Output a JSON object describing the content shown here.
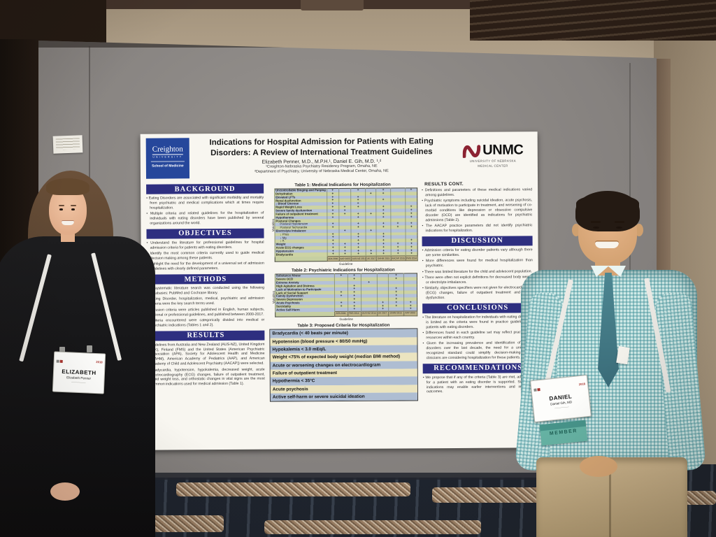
{
  "badges": {
    "left": {
      "year": "2018",
      "name": "ELIZABETH",
      "subname": "Elizabeth Penner"
    },
    "right": {
      "year": "2018",
      "name": "DANIEL",
      "subname": "Daniel Gih, MD",
      "ribbon": "MEMBER"
    }
  },
  "poster": {
    "creighton": {
      "name": "Creighton",
      "univ": "UNIVERSITY",
      "school": "School of Medicine"
    },
    "unmc": {
      "abbr": "UNMC",
      "sub1": "UNIVERSITY OF NEBRASKA",
      "sub2": "MEDICAL CENTER"
    },
    "title_line1": "Indications for Hospital Admission for Patients with Eating",
    "title_line2": "Disorders: A Review of International Treatment Guidelines",
    "authors": "Elizabeth Penner, M.D., M.P.H.¹, Daniel E. Gih, M.D. ¹,²",
    "affiliation1": "¹Creighton-Nebraska Psychiatry Residency Program, Omaha, NE",
    "affiliation2": "²Department of Psychiatry, University of Nebraska Medical Center, Omaha, NE",
    "sections": {
      "background": {
        "title": "BACKGROUND",
        "bullets": [
          "Eating Disorders are associated with significant morbidity and mortality from psychiatric and medical complications which at times require hospitalization.",
          "Multiple criteria and related guidelines for the hospitalization of individuals with eating disorders have been published by several organizations around the world."
        ]
      },
      "objectives": {
        "title": "OBJECTIVES",
        "bullets": [
          "Understand the literature for professional guidelines for hospital admission criteria for patients with eating disorders.",
          "Identify the most common criteria currently used to guide medical decision making among these patients.",
          "Highlight the need for the development of a universal set of admission guidelines with clearly defined parameters."
        ]
      },
      "methods": {
        "title": "METHODS",
        "bullets": [
          "A systematic literature search was conducted using the following databases: PubMed and Cochrane library.",
          "Eating Disorder, hospitalization, medical, psychiatric and admission criteria were the key search terms used.",
          "Inclusion criteria were articles published in English, human subjects, national or professional guidelines, and published between 2000-2017.",
          "Criteria encountered were categorically divided into medical or psychiatric indications (Tables 1 and 2)."
        ]
      },
      "results": {
        "title": "RESULTS",
        "bullets": [
          "Guidelines from Australia and New Zealand (AUS-NZ), United Kingdom (UK), Finland (FMS) and the United States (American Psychiatric Association (APA), Society for Adolescent Health and Medicine (SAHM), American Academy of Pediatrics (AAP), and American Academy of Child and Adolescent Psychiatry (AACAP)) were selected.",
          "Bradycardia, hypotension, hypokalemia, decreased weight, acute electrocardiography (ECG) changes, failure of outpatient treatment, rapid weight loss, and orthostatic changes in vital signs are the most common indications used for medical admission (Table 1)."
        ]
      },
      "results_cont": {
        "title": "RESULTS CONT.",
        "bullets": [
          "Definitions and parameters of these medical indications varied among guidelines.",
          "Psychiatric symptoms including suicidal ideation, acute psychosis, lack of motivation to participate in treatment, and worsening of co-morbid conditions like depression or obsessive compulsive disorder (OCD) are identified as indications for psychiatric admissions (Table 2).",
          "The AACAP practice parameters did not identify psychiatric indications for hospitalization."
        ]
      },
      "discussion": {
        "title": "DISCUSSION",
        "bullets": [
          "Admission criteria for eating disorder patients vary although there are some similarities.",
          "More differences were found for medical hospitalization than psychiatric.",
          "There was limited literature for the child and adolescent population.",
          "There were often not explicit definitions for decreased body weight or electrolyte imbalances.",
          "Similarly, objectives specifiers were not given for electrocardiogram (ECG) changes, failure of outpatient treatment and family dysfunction."
        ]
      },
      "conclusions": {
        "title": "CONCLUSIONS",
        "bullets": [
          "The literature on hospitalization for individuals with eating disorders is limited as the criteria were found in practice guidelines for patients with eating disorders.",
          "Differences found in each guideline set may reflect practices or resources within each country.",
          "Given the increasing prevalence and identification of eating disorders over the last decade, the need for a universally recognized standard could simplify decision-making when clinicians are considering hospitalization for these patients."
        ]
      },
      "recommendations": {
        "title": "RECOMMENDATIONS",
        "bullets": [
          "We propose that if any of the criteria (Table 3) are met, admission for a patient with an eating disorder is supported. Simplified indications may enable earlier interventions and improved outcomes."
        ]
      }
    },
    "tables": {
      "table1": {
        "title": "Table 1: Medical Indications for Hospitalization",
        "axis_x": "Guideline",
        "axis_y": "Variables",
        "mark": "+",
        "columns": [
          "APA 2006",
          "AAP 2003",
          "AUS-NZ 2014",
          "UK 2017",
          "SAHM 2015",
          "AACAP 2015",
          "FMS 2014"
        ],
        "rows": [
          {
            "label": "Uncontrollable Binging and Purging",
            "indent": 0,
            "marks": [
              1,
              0,
              1,
              0,
              1,
              0,
              1
            ]
          },
          {
            "label": "Dehydration",
            "indent": 0,
            "marks": [
              1,
              0,
              0,
              1,
              1,
              0,
              0
            ]
          },
          {
            "label": "Elevated LFTs",
            "indent": 0,
            "marks": [
              1,
              0,
              1,
              0,
              0,
              0,
              0
            ]
          },
          {
            "label": "Renal dysfunction",
            "indent": 0,
            "marks": [
              1,
              0,
              1,
              0,
              1,
              0,
              0
            ]
          },
          {
            "label": "↓ Blood Glucose",
            "indent": 0,
            "marks": [
              1,
              0,
              1,
              0,
              0,
              0,
              0
            ]
          },
          {
            "label": "Rapid Weight Loss",
            "indent": 0,
            "marks": [
              1,
              1,
              1,
              0,
              1,
              0,
              1
            ]
          },
          {
            "label": "Severe family dysfunction",
            "indent": 0,
            "marks": [
              1,
              1,
              0,
              0,
              1,
              0,
              1
            ]
          },
          {
            "label": "Failure of outpatient treatment",
            "indent": 0,
            "marks": [
              1,
              1,
              1,
              1,
              1,
              0,
              1
            ]
          },
          {
            "label": "Hypothermia",
            "indent": 0,
            "marks": [
              1,
              0,
              1,
              0,
              1,
              0,
              1
            ]
          },
          {
            "label": "Postural Changes",
            "indent": 0,
            "marks": [
              0,
              0,
              0,
              0,
              0,
              0,
              0
            ]
          },
          {
            "label": "Postural Hypotension",
            "indent": 1,
            "marks": [
              1,
              0,
              1,
              0,
              1,
              1,
              1
            ]
          },
          {
            "label": "Postural Tachycardia",
            "indent": 1,
            "marks": [
              1,
              0,
              1,
              0,
              1,
              1,
              1
            ]
          },
          {
            "label": "Electrolyte Imbalance",
            "indent": 0,
            "marks": [
              0,
              1,
              0,
              1,
              0,
              0,
              0
            ]
          },
          {
            "label": "↓ Phos",
            "indent": 1,
            "marks": [
              1,
              0,
              1,
              0,
              1,
              0,
              0
            ]
          },
          {
            "label": "↓ Mg",
            "indent": 1,
            "marks": [
              1,
              0,
              1,
              0,
              1,
              0,
              0
            ]
          },
          {
            "label": "↓ K",
            "indent": 1,
            "marks": [
              1,
              0,
              1,
              0,
              1,
              0,
              1
            ]
          },
          {
            "label": "Weight",
            "indent": 0,
            "marks": [
              1,
              1,
              1,
              0,
              1,
              1,
              1
            ]
          },
          {
            "label": "Acute ECG changes",
            "indent": 0,
            "marks": [
              1,
              1,
              1,
              0,
              1,
              1,
              1
            ]
          },
          {
            "label": "Hypotension",
            "indent": 0,
            "marks": [
              1,
              1,
              1,
              1,
              1,
              1,
              1
            ]
          },
          {
            "label": "Bradycardia",
            "indent": 0,
            "marks": [
              1,
              1,
              1,
              1,
              1,
              1,
              1
            ]
          }
        ]
      },
      "table2": {
        "title": "Table 2: Psychiatric Indications for Hospitalization",
        "axis_x": "Guideline",
        "axis_y": "Variables",
        "mark": "+",
        "columns": [
          "APA 2006",
          "FMS 2014",
          "AUS-NZ 2014",
          "UK 2017",
          "SAHM 2015",
          "AAP 2003"
        ],
        "rows": [
          {
            "label": "Substance Abuse",
            "indent": 0,
            "marks": [
              1,
              1,
              0,
              0,
              1,
              0
            ]
          },
          {
            "label": "Severe OCD",
            "indent": 0,
            "marks": [
              0,
              1,
              0,
              0,
              1,
              0
            ]
          },
          {
            "label": "Extreme Anxiety",
            "indent": 0,
            "marks": [
              0,
              0,
              1,
              0,
              0,
              0
            ]
          },
          {
            "label": "High Agitation and Distress",
            "indent": 0,
            "marks": [
              0,
              1,
              0,
              0,
              0,
              0
            ]
          },
          {
            "label": "Lack of Motivation to Participate",
            "indent": 0,
            "marks": [
              0,
              1,
              0,
              0,
              1,
              0
            ]
          },
          {
            "label": "Lack of Social Support",
            "indent": 0,
            "marks": [
              1,
              1,
              0,
              0,
              1,
              0
            ]
          },
          {
            "label": "Family Dysfunction",
            "indent": 0,
            "marks": [
              1,
              1,
              0,
              0,
              1,
              0
            ]
          },
          {
            "label": "Severe Depression",
            "indent": 0,
            "marks": [
              0,
              1,
              0,
              0,
              1,
              0
            ]
          },
          {
            "label": "Acute Psychosis",
            "indent": 0,
            "marks": [
              1,
              1,
              0,
              1,
              1,
              1
            ]
          },
          {
            "label": "Suicidality",
            "indent": 0,
            "marks": [
              1,
              1,
              0,
              1,
              1,
              1
            ]
          },
          {
            "label": "Active Self-Harm",
            "indent": 0,
            "marks": [
              0,
              1,
              0,
              1,
              0,
              1
            ]
          }
        ]
      },
      "table3": {
        "title": "Table 3: Proposed Criteria for Hospitalization",
        "rows": [
          "Bradycardia (< 40 beats per minute)",
          "Hypotension (blood pressure < 80/50 mmHg)",
          "Hypokalemia < 3.0 mEq/L",
          "Weight <75% of expected body weight (median BMI method)",
          "Acute or worsening changes on electrocardiogram",
          "Failure of outpatient treatment",
          "Hypothermia < 35°C",
          "Acute psychosis",
          "Active self-harm or severe suicidal ideation"
        ]
      }
    }
  }
}
